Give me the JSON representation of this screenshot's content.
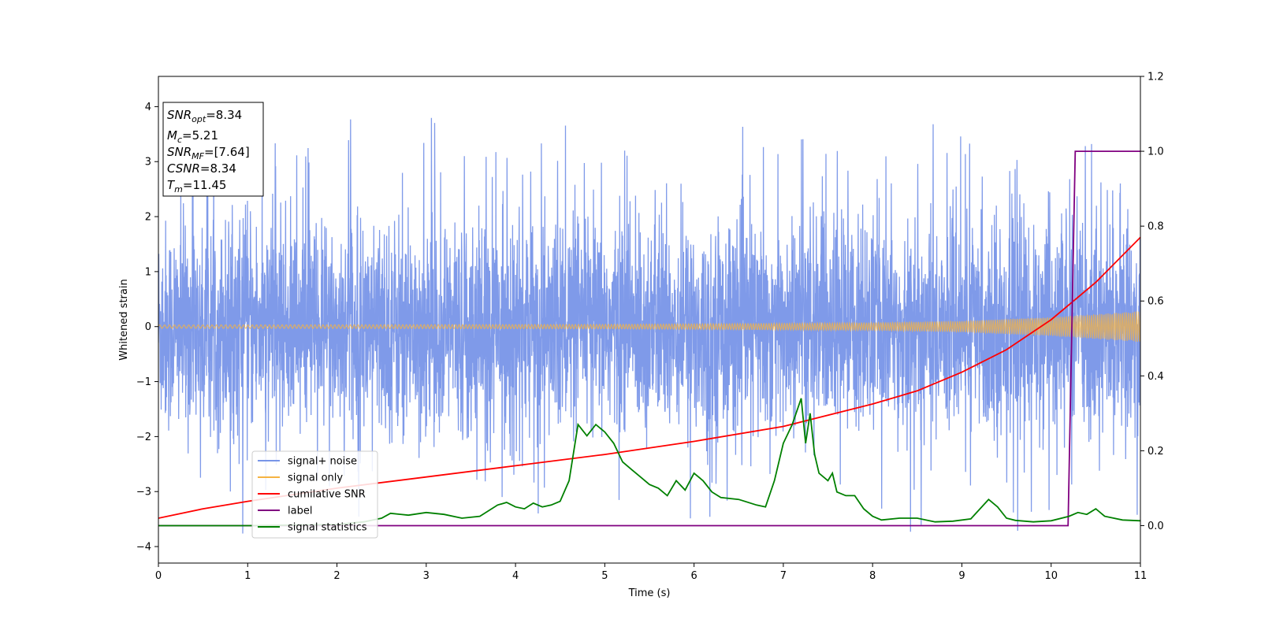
{
  "chart_data": {
    "type": "line",
    "xlabel": "Time (s)",
    "ylabel": "Whitened strain",
    "xlim": [
      0,
      11
    ],
    "ylim_left": [
      -4.3,
      4.55
    ],
    "ylim_right": [
      -0.1,
      1.2
    ],
    "x_ticks": [
      0,
      1,
      2,
      3,
      4,
      5,
      6,
      7,
      8,
      9,
      10,
      11
    ],
    "y_ticks_left": [
      -4,
      -3,
      -2,
      -1,
      0,
      1,
      2,
      3,
      4
    ],
    "y_ticks_right": [
      0.0,
      0.2,
      0.4,
      0.6,
      0.8,
      1.0,
      1.2
    ],
    "grid": false,
    "legend_position": "lower-left",
    "annotation_box": {
      "lines": [
        {
          "main": "SNR",
          "sub": "opt",
          "rest": "=8.34"
        },
        {
          "main": "M",
          "sub": "c",
          "rest": "=5.21"
        },
        {
          "main": "SNR",
          "sub": "MF",
          "rest": "=[7.64]"
        },
        {
          "main": "CSNR",
          "sub": "",
          "rest": "=8.34"
        },
        {
          "main": "T",
          "sub": "m",
          "rest": "=11.45"
        }
      ]
    },
    "series": [
      {
        "name": "signal+ noise",
        "color": "#7895e8",
        "axis": "left",
        "description_envelope": {
          "typical_abs": 1.8,
          "max": 4.17,
          "min": -3.88
        }
      },
      {
        "name": "signal only",
        "color": "#f5b342",
        "axis": "left",
        "amplitude_points": {
          "x": [
            0,
            5,
            8,
            9,
            10,
            11
          ],
          "y": [
            0.03,
            0.04,
            0.07,
            0.1,
            0.17,
            0.28
          ]
        }
      },
      {
        "name": "cumilative SNR",
        "color": "#ff0000",
        "axis": "right",
        "x": [
          0,
          0.5,
          1,
          2,
          3,
          4,
          5,
          6,
          7,
          8,
          8.5,
          9,
          9.5,
          10,
          10.5,
          11
        ],
        "y": [
          0.02,
          0.045,
          0.065,
          0.1,
          0.13,
          0.16,
          0.19,
          0.225,
          0.265,
          0.325,
          0.36,
          0.41,
          0.47,
          0.55,
          0.65,
          0.77
        ]
      },
      {
        "name": "label",
        "color": "#800080",
        "axis": "right",
        "x": [
          0,
          10.19,
          10.27,
          11
        ],
        "y": [
          0.0,
          0.0,
          1.0,
          1.0
        ]
      },
      {
        "name": "signal statistics",
        "color": "#008000",
        "axis": "right",
        "x": [
          0,
          1,
          2,
          2.3,
          2.5,
          2.6,
          2.8,
          3.0,
          3.2,
          3.4,
          3.6,
          3.8,
          3.9,
          4.0,
          4.1,
          4.2,
          4.3,
          4.4,
          4.5,
          4.6,
          4.7,
          4.8,
          4.9,
          5.0,
          5.1,
          5.2,
          5.3,
          5.4,
          5.5,
          5.6,
          5.7,
          5.8,
          5.9,
          6.0,
          6.1,
          6.2,
          6.3,
          6.5,
          6.7,
          6.8,
          6.9,
          7.0,
          7.1,
          7.2,
          7.25,
          7.3,
          7.35,
          7.4,
          7.5,
          7.55,
          7.6,
          7.7,
          7.8,
          7.9,
          8.0,
          8.1,
          8.3,
          8.5,
          8.7,
          8.9,
          9.1,
          9.3,
          9.4,
          9.5,
          9.6,
          9.8,
          10.0,
          10.2,
          10.3,
          10.4,
          10.5,
          10.6,
          10.8,
          11.0
        ],
        "y": [
          0.0,
          0.0,
          0.003,
          0.01,
          0.02,
          0.033,
          0.028,
          0.035,
          0.03,
          0.02,
          0.025,
          0.055,
          0.062,
          0.05,
          0.045,
          0.06,
          0.05,
          0.055,
          0.065,
          0.12,
          0.27,
          0.24,
          0.27,
          0.25,
          0.22,
          0.17,
          0.15,
          0.13,
          0.11,
          0.1,
          0.08,
          0.12,
          0.095,
          0.14,
          0.12,
          0.09,
          0.075,
          0.07,
          0.055,
          0.05,
          0.12,
          0.22,
          0.27,
          0.34,
          0.22,
          0.3,
          0.19,
          0.14,
          0.12,
          0.14,
          0.09,
          0.08,
          0.08,
          0.045,
          0.025,
          0.015,
          0.02,
          0.02,
          0.01,
          0.012,
          0.018,
          0.07,
          0.05,
          0.02,
          0.014,
          0.01,
          0.013,
          0.025,
          0.035,
          0.03,
          0.045,
          0.025,
          0.015,
          0.013
        ]
      }
    ]
  }
}
